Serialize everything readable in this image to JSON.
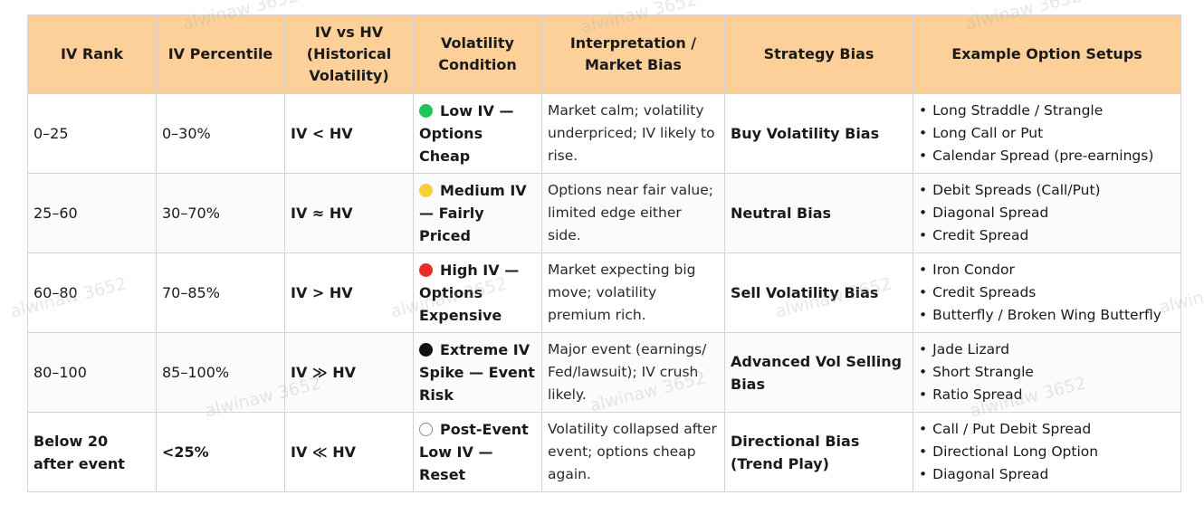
{
  "watermark_text": "alwinaw 3652",
  "watermark_partial": "alwina",
  "headers": {
    "iv_rank": "IV Rank",
    "iv_percentile": "IV Percentile",
    "iv_vs_hv": "IV vs HV (Historical Volatility)",
    "volatility_condition": "Volatility Condition",
    "interpretation": "Interpretation / Market Bias",
    "strategy_bias": "Strategy Bias",
    "example_setups": "Example Option Setups"
  },
  "rows": [
    {
      "iv_rank": "0–25",
      "iv_percentile": "0–30%",
      "iv_vs_hv": "IV < HV",
      "condition_color": "#1fc45a",
      "condition": "Low IV — Options Cheap",
      "interpretation": "Market calm; volatility underpriced; IV likely to rise.",
      "strategy_bias": "Buy Volatility Bias",
      "setups": [
        "Long Straddle / Strangle",
        "Long Call or Put",
        "Calendar Spread (pre-earnings)"
      ]
    },
    {
      "iv_rank": "25–60",
      "iv_percentile": "30–70%",
      "iv_vs_hv": "IV ≈ HV",
      "condition_color": "#f7cd3a",
      "condition": "Medium IV — Fairly Priced",
      "interpretation": "Options near fair value; limited edge either side.",
      "strategy_bias": "Neutral Bias",
      "setups": [
        "Debit Spreads (Call/Put)",
        "Diagonal Spread",
        "Credit Spread"
      ]
    },
    {
      "iv_rank": "60–80",
      "iv_percentile": "70–85%",
      "iv_vs_hv": "IV > HV",
      "condition_color": "#ee2b2b",
      "condition": "High IV — Options Expensive",
      "interpretation": "Market expecting big move; volatility premium rich.",
      "strategy_bias": "Sell Volatility Bias",
      "setups": [
        "Iron Condor",
        "Credit Spreads",
        "Butterfly / Broken Wing Butterfly"
      ]
    },
    {
      "iv_rank": "80–100",
      "iv_percentile": "85–100%",
      "iv_vs_hv": "IV ≫ HV",
      "condition_color": "#111111",
      "condition": "Extreme IV Spike — Event Risk",
      "interpretation": "Major event (earnings/ Fed/lawsuit); IV crush likely.",
      "strategy_bias": "Advanced Vol Selling Bias",
      "setups": [
        "Jade Lizard",
        "Short Strangle",
        "Ratio Spread"
      ]
    },
    {
      "iv_rank": "Below 20 after event",
      "iv_percentile": "<25%",
      "iv_vs_hv": "IV ≪ HV",
      "condition_color": "#ffffff",
      "condition": "Post-Event Low IV — Reset",
      "interpretation": "Volatility collapsed after event; options cheap again.",
      "strategy_bias": "Directional Bias (Trend Play)",
      "setups": [
        "Call / Put Debit Spread",
        "Directional Long Option",
        "Diagonal Spread"
      ]
    }
  ]
}
